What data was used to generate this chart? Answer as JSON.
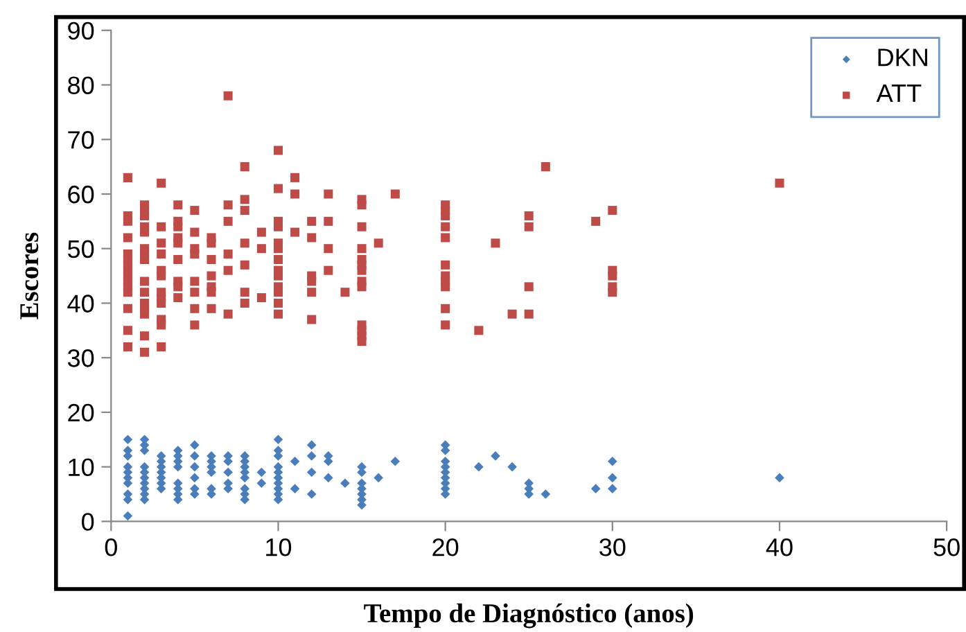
{
  "chart_data": {
    "type": "scatter",
    "xlabel": "Tempo de Diagnóstico (anos)",
    "ylabel": "Escores",
    "xlim": [
      0,
      50
    ],
    "xticks": [
      0,
      10,
      20,
      30,
      40,
      50
    ],
    "ylim": [
      0,
      90
    ],
    "yticks": [
      0,
      10,
      20,
      30,
      40,
      50,
      60,
      70,
      80,
      90
    ],
    "grid": false,
    "legend": "top right",
    "series": [
      {
        "name": "DKN",
        "color": "#4a7ebb",
        "marker": "diamond",
        "x": [
          1,
          1,
          1,
          1,
          1,
          1,
          1,
          1,
          1,
          1,
          2,
          2,
          2,
          2,
          2,
          2,
          2,
          2,
          2,
          2,
          3,
          3,
          3,
          3,
          3,
          3,
          3,
          4,
          4,
          4,
          4,
          4,
          4,
          4,
          4,
          5,
          5,
          5,
          5,
          5,
          5,
          6,
          6,
          6,
          6,
          6,
          6,
          7,
          7,
          7,
          7,
          7,
          8,
          8,
          8,
          8,
          8,
          8,
          8,
          8,
          9,
          9,
          10,
          10,
          10,
          10,
          10,
          10,
          10,
          10,
          10,
          10,
          11,
          11,
          12,
          12,
          12,
          12,
          13,
          13,
          13,
          14,
          15,
          15,
          15,
          15,
          15,
          15,
          15,
          16,
          17,
          20,
          20,
          20,
          20,
          20,
          20,
          20,
          20,
          20,
          22,
          23,
          24,
          25,
          25,
          25,
          26,
          29,
          30,
          30,
          30,
          40
        ],
        "values": [
          15,
          13,
          12,
          10,
          9,
          8,
          7,
          5,
          4,
          1,
          15,
          14,
          13,
          10,
          9,
          8,
          7,
          6,
          5,
          4,
          12,
          11,
          10,
          9,
          8,
          7,
          6,
          13,
          12,
          11,
          10,
          7,
          6,
          5,
          4,
          14,
          12,
          10,
          8,
          6,
          5,
          12,
          11,
          10,
          9,
          6,
          5,
          12,
          11,
          9,
          7,
          6,
          12,
          11,
          10,
          9,
          8,
          6,
          5,
          4,
          9,
          7,
          15,
          13,
          12,
          10,
          9,
          8,
          7,
          6,
          5,
          4,
          11,
          6,
          14,
          12,
          9,
          5,
          12,
          11,
          8,
          7,
          10,
          9,
          7,
          6,
          5,
          4,
          3,
          8,
          11,
          14,
          13,
          11,
          10,
          9,
          8,
          7,
          6,
          5,
          10,
          12,
          10,
          7,
          6,
          5,
          5,
          6,
          11,
          8,
          6,
          8
        ]
      },
      {
        "name": "ATT",
        "color": "#be4b48",
        "marker": "square",
        "x": [
          1,
          1,
          1,
          1,
          1,
          1,
          1,
          1,
          1,
          1,
          1,
          1,
          1,
          1,
          1,
          2,
          2,
          2,
          2,
          2,
          2,
          2,
          2,
          2,
          2,
          2,
          2,
          2,
          2,
          2,
          3,
          3,
          3,
          3,
          3,
          3,
          3,
          3,
          3,
          3,
          3,
          3,
          4,
          4,
          4,
          4,
          4,
          4,
          4,
          4,
          4,
          5,
          5,
          5,
          5,
          5,
          5,
          5,
          5,
          6,
          6,
          6,
          6,
          6,
          6,
          6,
          7,
          7,
          7,
          7,
          7,
          7,
          8,
          8,
          8,
          8,
          8,
          8,
          8,
          9,
          9,
          9,
          10,
          10,
          10,
          10,
          10,
          10,
          10,
          10,
          10,
          10,
          10,
          10,
          10,
          11,
          11,
          11,
          12,
          12,
          12,
          12,
          12,
          12,
          13,
          13,
          13,
          13,
          14,
          15,
          15,
          15,
          15,
          15,
          15,
          15,
          15,
          15,
          15,
          15,
          15,
          15,
          16,
          17,
          20,
          20,
          20,
          20,
          20,
          20,
          20,
          20,
          20,
          20,
          20,
          22,
          23,
          24,
          25,
          25,
          25,
          25,
          26,
          29,
          30,
          30,
          30,
          30,
          30,
          40
        ],
        "values": [
          63,
          56,
          55,
          52,
          49,
          48,
          47,
          46,
          45,
          44,
          43,
          42,
          39,
          35,
          32,
          58,
          57,
          56,
          54,
          53,
          50,
          49,
          48,
          44,
          42,
          40,
          39,
          38,
          34,
          31,
          62,
          54,
          51,
          49,
          46,
          45,
          42,
          41,
          40,
          37,
          36,
          32,
          58,
          55,
          54,
          52,
          51,
          48,
          44,
          43,
          41,
          57,
          53,
          50,
          49,
          44,
          42,
          39,
          36,
          52,
          51,
          48,
          45,
          43,
          42,
          39,
          78,
          58,
          55,
          49,
          46,
          38,
          65,
          59,
          57,
          51,
          47,
          42,
          40,
          53,
          50,
          41,
          68,
          61,
          55,
          54,
          51,
          50,
          48,
          46,
          45,
          43,
          42,
          40,
          38,
          63,
          60,
          53,
          55,
          52,
          45,
          44,
          42,
          37,
          60,
          55,
          50,
          46,
          42,
          59,
          58,
          54,
          50,
          48,
          47,
          46,
          44,
          43,
          36,
          35,
          34,
          33,
          51,
          60,
          58,
          57,
          56,
          54,
          52,
          47,
          45,
          44,
          43,
          39,
          36,
          35,
          51,
          38,
          56,
          54,
          43,
          38,
          65,
          55,
          57,
          46,
          45,
          43,
          42,
          62
        ]
      }
    ]
  }
}
